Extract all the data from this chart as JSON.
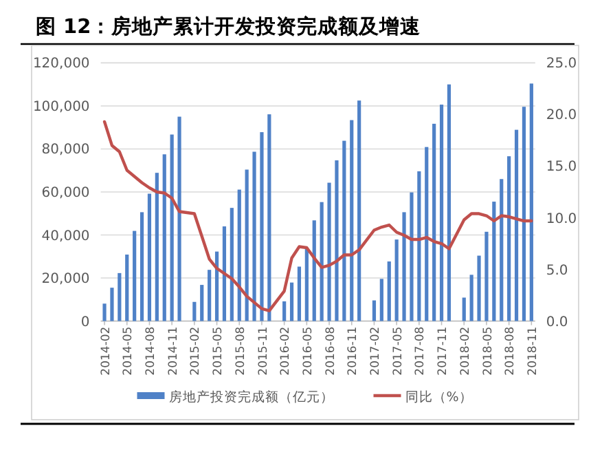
{
  "chart_data": {
    "type": "bar",
    "title": "图 12：房地产累计开发投资完成额及增速",
    "categories": [
      "2014-02",
      null,
      null,
      "2014-05",
      null,
      null,
      "2014-08",
      null,
      null,
      "2014-11",
      null,
      null,
      "2015-02",
      null,
      null,
      "2015-05",
      null,
      null,
      "2015-08",
      null,
      null,
      "2015-11",
      null,
      null,
      "2016-02",
      null,
      null,
      "2016-05",
      null,
      null,
      "2016-08",
      null,
      null,
      "2016-11",
      null,
      null,
      "2017-02",
      null,
      null,
      "2017-05",
      null,
      null,
      "2017-08",
      null,
      null,
      "2017-11",
      null,
      null,
      "2018-02",
      null,
      null,
      "2018-05",
      null,
      null,
      "2018-08",
      null,
      null,
      "2018-11"
    ],
    "series": [
      {
        "name": "房地产投资完成额（亿元）",
        "color": "#4f81c7",
        "values": [
          8100,
          15500,
          22300,
          30900,
          41900,
          50600,
          59200,
          68900,
          77500,
          86700,
          95000,
          null,
          8900,
          16800,
          23800,
          32300,
          44000,
          52600,
          61100,
          70400,
          78700,
          87800,
          96100,
          null,
          9150,
          17900,
          25300,
          34000,
          46800,
          55300,
          64300,
          74700,
          83800,
          93400,
          102500,
          null,
          9600,
          19600,
          27700,
          37900,
          50600,
          59800,
          69600,
          80900,
          91700,
          100600,
          110000,
          null,
          10900,
          21500,
          30400,
          41500,
          55500,
          66000,
          76600,
          88900,
          99600,
          110400
        ]
      },
      {
        "name": "同比（%）",
        "type": "line",
        "axis": "y2",
        "color": "#c0504d",
        "values": [
          19.3,
          17.0,
          16.4,
          14.6,
          14.0,
          13.4,
          12.9,
          12.5,
          12.4,
          11.9,
          10.6,
          null,
          10.4,
          8.2,
          6.0,
          5.1,
          4.6,
          4.1,
          3.3,
          2.4,
          1.8,
          1.2,
          1.0,
          null,
          2.9,
          6.1,
          7.2,
          7.1,
          6.1,
          5.2,
          5.4,
          5.8,
          6.4,
          6.4,
          6.9,
          null,
          8.8,
          9.1,
          9.3,
          8.6,
          8.3,
          7.9,
          7.9,
          8.1,
          7.7,
          7.5,
          7.0,
          null,
          9.8,
          10.4,
          10.4,
          10.2,
          9.7,
          10.2,
          10.1,
          9.9,
          9.7,
          9.7
        ]
      }
    ],
    "ylim": [
      0,
      120000
    ],
    "yticks": [
      {
        "value": 0,
        "label": "0"
      },
      {
        "value": 20000,
        "label": "20,000"
      },
      {
        "value": 40000,
        "label": "40,000"
      },
      {
        "value": 60000,
        "label": "60,000"
      },
      {
        "value": 80000,
        "label": "80,000"
      },
      {
        "value": 100000,
        "label": "100,000"
      },
      {
        "value": 120000,
        "label": "120,000"
      }
    ],
    "y2lim": [
      0,
      25
    ],
    "y2ticks": [
      {
        "value": 0,
        "label": "0.0"
      },
      {
        "value": 5,
        "label": "5.0"
      },
      {
        "value": 10,
        "label": "10.0"
      },
      {
        "value": 15,
        "label": "15.0"
      },
      {
        "value": 20,
        "label": "20.0"
      },
      {
        "value": 25,
        "label": "25.0"
      }
    ],
    "grid": "y",
    "legend": "bottom"
  }
}
